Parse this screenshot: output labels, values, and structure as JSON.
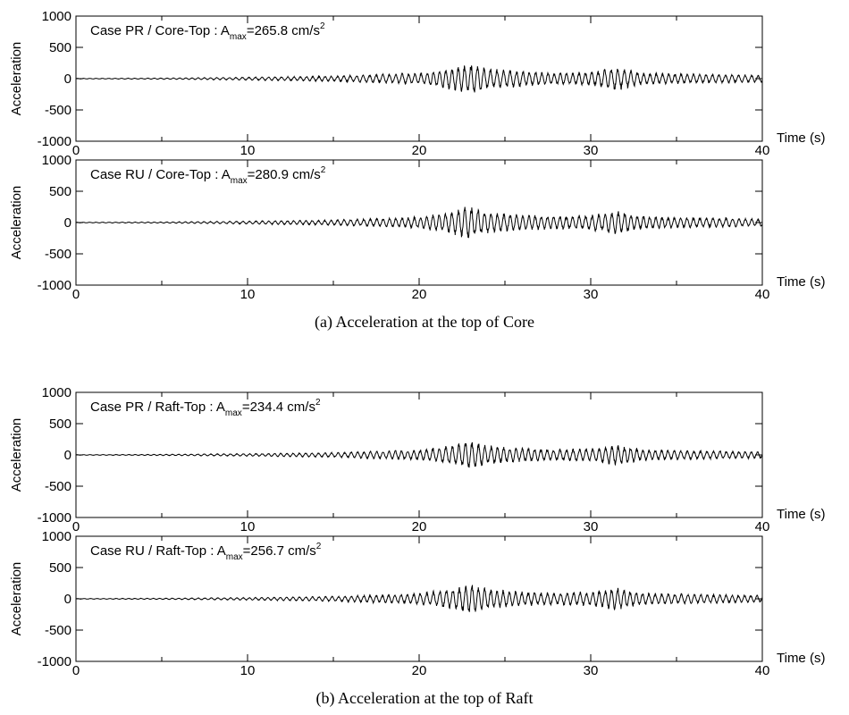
{
  "chart_data": [
    {
      "type": "line",
      "annotation": {
        "prefix": "Case PR / Core-Top : A",
        "subscript": "max",
        "value": "=265.8 cm/s",
        "superscript": "2"
      },
      "ylabel": "Acceleration",
      "xlabel": "Time (s)",
      "xlim": [
        0,
        40
      ],
      "ylim": [
        -1000,
        1000
      ],
      "xticks": [
        "0",
        "10",
        "20",
        "30",
        "40"
      ],
      "yticks": [
        "1000",
        "500",
        "0",
        "-500",
        "-1000"
      ],
      "amax": 265.8,
      "series": [
        {
          "envelope": [
            {
              "t": 0,
              "a": 5
            },
            {
              "t": 5,
              "a": 10
            },
            {
              "t": 10,
              "a": 25
            },
            {
              "t": 15,
              "a": 45
            },
            {
              "t": 18,
              "a": 80
            },
            {
              "t": 20,
              "a": 95
            },
            {
              "t": 21,
              "a": 140
            },
            {
              "t": 22,
              "a": 190
            },
            {
              "t": 23,
              "a": 265.8
            },
            {
              "t": 24,
              "a": 170
            },
            {
              "t": 26,
              "a": 130
            },
            {
              "t": 28,
              "a": 100
            },
            {
              "t": 30,
              "a": 120
            },
            {
              "t": 31.5,
              "a": 190
            },
            {
              "t": 33,
              "a": 100
            },
            {
              "t": 35,
              "a": 85
            },
            {
              "t": 38,
              "a": 70
            },
            {
              "t": 40,
              "a": 60
            }
          ]
        }
      ]
    },
    {
      "type": "line",
      "annotation": {
        "prefix": "Case RU / Core-Top : A",
        "subscript": "max",
        "value": "=280.9 cm/s",
        "superscript": "2"
      },
      "ylabel": "Acceleration",
      "xlabel": "Time (s)",
      "xlim": [
        0,
        40
      ],
      "ylim": [
        -1000,
        1000
      ],
      "xticks": [
        "0",
        "10",
        "20",
        "30",
        "40"
      ],
      "yticks": [
        "1000",
        "500",
        "0",
        "-500",
        "-1000"
      ],
      "amax": 280.9,
      "series": [
        {
          "envelope": [
            {
              "t": 0,
              "a": 5
            },
            {
              "t": 5,
              "a": 10
            },
            {
              "t": 10,
              "a": 25
            },
            {
              "t": 15,
              "a": 45
            },
            {
              "t": 18,
              "a": 75
            },
            {
              "t": 20,
              "a": 100
            },
            {
              "t": 21,
              "a": 150
            },
            {
              "t": 22,
              "a": 200
            },
            {
              "t": 23,
              "a": 280.9
            },
            {
              "t": 24,
              "a": 180
            },
            {
              "t": 26,
              "a": 130
            },
            {
              "t": 28,
              "a": 110
            },
            {
              "t": 30,
              "a": 130
            },
            {
              "t": 31.5,
              "a": 200
            },
            {
              "t": 33,
              "a": 110
            },
            {
              "t": 35,
              "a": 90
            },
            {
              "t": 38,
              "a": 75
            },
            {
              "t": 40,
              "a": 60
            }
          ]
        }
      ]
    },
    {
      "type": "line",
      "annotation": {
        "prefix": "Case PR / Raft-Top : A",
        "subscript": "max",
        "value": "=234.4 cm/s",
        "superscript": "2"
      },
      "ylabel": "Acceleration",
      "xlabel": "Time (s)",
      "xlim": [
        0,
        40
      ],
      "ylim": [
        -1000,
        1000
      ],
      "xticks": [
        "0",
        "10",
        "20",
        "30",
        "40"
      ],
      "yticks": [
        "1000",
        "500",
        "0",
        "-500",
        "-1000"
      ],
      "amax": 234.4,
      "series": [
        {
          "envelope": [
            {
              "t": 0,
              "a": 5
            },
            {
              "t": 5,
              "a": 10
            },
            {
              "t": 10,
              "a": 22
            },
            {
              "t": 15,
              "a": 40
            },
            {
              "t": 18,
              "a": 70
            },
            {
              "t": 20,
              "a": 85
            },
            {
              "t": 21,
              "a": 125
            },
            {
              "t": 22,
              "a": 170
            },
            {
              "t": 23,
              "a": 234.4
            },
            {
              "t": 24,
              "a": 155
            },
            {
              "t": 26,
              "a": 115
            },
            {
              "t": 28,
              "a": 95
            },
            {
              "t": 30,
              "a": 110
            },
            {
              "t": 31.5,
              "a": 175
            },
            {
              "t": 33,
              "a": 95
            },
            {
              "t": 35,
              "a": 80
            },
            {
              "t": 38,
              "a": 65
            },
            {
              "t": 40,
              "a": 55
            }
          ]
        }
      ]
    },
    {
      "type": "line",
      "annotation": {
        "prefix": "Case RU / Raft-Top : A",
        "subscript": "max",
        "value": "=256.7 cm/s",
        "superscript": "2"
      },
      "ylabel": "Acceleration",
      "xlabel": "Time (s)",
      "xlim": [
        0,
        40
      ],
      "ylim": [
        -1000,
        1000
      ],
      "xticks": [
        "0",
        "10",
        "20",
        "30",
        "40"
      ],
      "yticks": [
        "1000",
        "500",
        "0",
        "-500",
        "-1000"
      ],
      "amax": 256.7,
      "series": [
        {
          "envelope": [
            {
              "t": 0,
              "a": 5
            },
            {
              "t": 5,
              "a": 10
            },
            {
              "t": 10,
              "a": 22
            },
            {
              "t": 15,
              "a": 42
            },
            {
              "t": 18,
              "a": 72
            },
            {
              "t": 20,
              "a": 90
            },
            {
              "t": 21,
              "a": 135
            },
            {
              "t": 22,
              "a": 180
            },
            {
              "t": 23,
              "a": 256.7
            },
            {
              "t": 24,
              "a": 165
            },
            {
              "t": 26,
              "a": 120
            },
            {
              "t": 28,
              "a": 100
            },
            {
              "t": 30,
              "a": 120
            },
            {
              "t": 31.5,
              "a": 185
            },
            {
              "t": 33,
              "a": 100
            },
            {
              "t": 35,
              "a": 85
            },
            {
              "t": 38,
              "a": 70
            },
            {
              "t": 40,
              "a": 58
            }
          ]
        }
      ]
    }
  ],
  "captions": {
    "a": "(a)  Acceleration at the top of Core",
    "b": "(b)  Acceleration at the top of Raft"
  }
}
